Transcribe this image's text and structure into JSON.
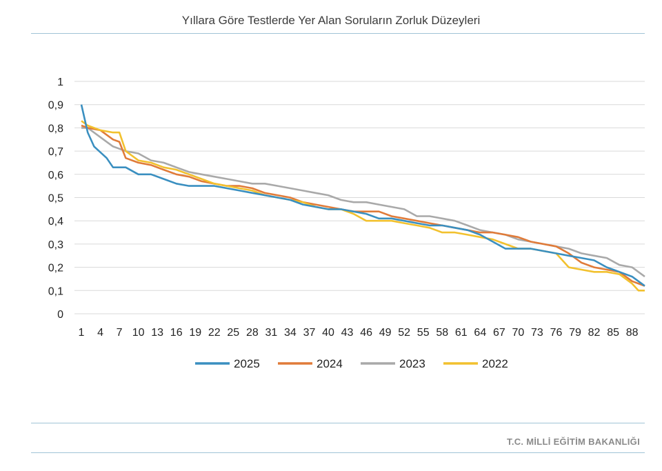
{
  "header": {
    "title": "Yıllara Göre Testlerde Yer Alan Soruların Zorluk Düzeyleri"
  },
  "footer": {
    "org": "T.C. MİLLİ EĞİTİM BAKANLIĞI"
  },
  "chart_data": {
    "type": "line",
    "title": "Yıllara Göre Testlerde Yer Alan Soruların Zorluk Düzeyleri",
    "xlabel": "",
    "ylabel": "",
    "ylim": [
      0,
      1
    ],
    "y_ticks": [
      "0",
      "0,1",
      "0,2",
      "0,3",
      "0,4",
      "0,5",
      "0,6",
      "0,7",
      "0,8",
      "0,9",
      "1"
    ],
    "x_range": [
      1,
      90
    ],
    "x_ticks": [
      1,
      4,
      7,
      10,
      13,
      16,
      19,
      22,
      25,
      28,
      31,
      34,
      37,
      40,
      43,
      46,
      49,
      52,
      55,
      58,
      61,
      64,
      67,
      70,
      73,
      76,
      79,
      82,
      85,
      88
    ],
    "grid": true,
    "legend_position": "bottom",
    "series": [
      {
        "name": "2025",
        "color": "#3a8fc0",
        "points": [
          [
            1,
            0.9
          ],
          [
            2,
            0.78
          ],
          [
            3,
            0.72
          ],
          [
            5,
            0.67
          ],
          [
            6,
            0.63
          ],
          [
            8,
            0.63
          ],
          [
            10,
            0.6
          ],
          [
            12,
            0.6
          ],
          [
            14,
            0.58
          ],
          [
            16,
            0.56
          ],
          [
            18,
            0.55
          ],
          [
            20,
            0.55
          ],
          [
            22,
            0.55
          ],
          [
            24,
            0.54
          ],
          [
            26,
            0.53
          ],
          [
            28,
            0.52
          ],
          [
            30,
            0.51
          ],
          [
            32,
            0.5
          ],
          [
            34,
            0.49
          ],
          [
            36,
            0.47
          ],
          [
            38,
            0.46
          ],
          [
            40,
            0.45
          ],
          [
            42,
            0.45
          ],
          [
            44,
            0.44
          ],
          [
            46,
            0.43
          ],
          [
            48,
            0.41
          ],
          [
            50,
            0.41
          ],
          [
            52,
            0.4
          ],
          [
            54,
            0.39
          ],
          [
            56,
            0.38
          ],
          [
            58,
            0.38
          ],
          [
            60,
            0.37
          ],
          [
            62,
            0.36
          ],
          [
            64,
            0.34
          ],
          [
            66,
            0.31
          ],
          [
            68,
            0.28
          ],
          [
            70,
            0.28
          ],
          [
            72,
            0.28
          ],
          [
            74,
            0.27
          ],
          [
            76,
            0.26
          ],
          [
            78,
            0.25
          ],
          [
            80,
            0.24
          ],
          [
            82,
            0.23
          ],
          [
            84,
            0.2
          ],
          [
            86,
            0.18
          ],
          [
            88,
            0.16
          ],
          [
            89,
            0.14
          ],
          [
            90,
            0.12
          ]
        ]
      },
      {
        "name": "2024",
        "color": "#e07b39",
        "points": [
          [
            1,
            0.81
          ],
          [
            2,
            0.8
          ],
          [
            4,
            0.79
          ],
          [
            6,
            0.75
          ],
          [
            7,
            0.74
          ],
          [
            8,
            0.67
          ],
          [
            10,
            0.65
          ],
          [
            12,
            0.64
          ],
          [
            14,
            0.62
          ],
          [
            16,
            0.6
          ],
          [
            18,
            0.59
          ],
          [
            20,
            0.57
          ],
          [
            22,
            0.56
          ],
          [
            24,
            0.55
          ],
          [
            26,
            0.55
          ],
          [
            28,
            0.54
          ],
          [
            30,
            0.52
          ],
          [
            32,
            0.51
          ],
          [
            34,
            0.5
          ],
          [
            36,
            0.48
          ],
          [
            38,
            0.47
          ],
          [
            40,
            0.46
          ],
          [
            42,
            0.45
          ],
          [
            44,
            0.44
          ],
          [
            46,
            0.44
          ],
          [
            48,
            0.44
          ],
          [
            50,
            0.42
          ],
          [
            52,
            0.41
          ],
          [
            54,
            0.4
          ],
          [
            56,
            0.39
          ],
          [
            58,
            0.38
          ],
          [
            60,
            0.37
          ],
          [
            62,
            0.36
          ],
          [
            64,
            0.35
          ],
          [
            66,
            0.35
          ],
          [
            68,
            0.34
          ],
          [
            70,
            0.33
          ],
          [
            72,
            0.31
          ],
          [
            74,
            0.3
          ],
          [
            76,
            0.29
          ],
          [
            78,
            0.26
          ],
          [
            80,
            0.22
          ],
          [
            82,
            0.2
          ],
          [
            84,
            0.19
          ],
          [
            86,
            0.18
          ],
          [
            88,
            0.14
          ],
          [
            90,
            0.12
          ]
        ]
      },
      {
        "name": "2023",
        "color": "#a9a9a9",
        "points": [
          [
            1,
            0.8
          ],
          [
            2,
            0.8
          ],
          [
            4,
            0.76
          ],
          [
            6,
            0.72
          ],
          [
            7,
            0.71
          ],
          [
            8,
            0.7
          ],
          [
            10,
            0.69
          ],
          [
            12,
            0.66
          ],
          [
            14,
            0.65
          ],
          [
            16,
            0.63
          ],
          [
            18,
            0.61
          ],
          [
            20,
            0.6
          ],
          [
            22,
            0.59
          ],
          [
            24,
            0.58
          ],
          [
            26,
            0.57
          ],
          [
            28,
            0.56
          ],
          [
            30,
            0.56
          ],
          [
            32,
            0.55
          ],
          [
            34,
            0.54
          ],
          [
            36,
            0.53
          ],
          [
            38,
            0.52
          ],
          [
            40,
            0.51
          ],
          [
            42,
            0.49
          ],
          [
            44,
            0.48
          ],
          [
            46,
            0.48
          ],
          [
            48,
            0.47
          ],
          [
            50,
            0.46
          ],
          [
            52,
            0.45
          ],
          [
            54,
            0.42
          ],
          [
            56,
            0.42
          ],
          [
            58,
            0.41
          ],
          [
            60,
            0.4
          ],
          [
            62,
            0.38
          ],
          [
            64,
            0.36
          ],
          [
            66,
            0.35
          ],
          [
            68,
            0.34
          ],
          [
            70,
            0.32
          ],
          [
            72,
            0.31
          ],
          [
            74,
            0.3
          ],
          [
            76,
            0.29
          ],
          [
            78,
            0.28
          ],
          [
            80,
            0.26
          ],
          [
            82,
            0.25
          ],
          [
            84,
            0.24
          ],
          [
            86,
            0.21
          ],
          [
            88,
            0.2
          ],
          [
            90,
            0.16
          ]
        ]
      },
      {
        "name": "2022",
        "color": "#f2c12e",
        "points": [
          [
            1,
            0.83
          ],
          [
            2,
            0.81
          ],
          [
            4,
            0.79
          ],
          [
            6,
            0.78
          ],
          [
            7,
            0.78
          ],
          [
            8,
            0.7
          ],
          [
            10,
            0.66
          ],
          [
            12,
            0.65
          ],
          [
            14,
            0.63
          ],
          [
            16,
            0.62
          ],
          [
            18,
            0.6
          ],
          [
            20,
            0.58
          ],
          [
            22,
            0.56
          ],
          [
            24,
            0.55
          ],
          [
            26,
            0.54
          ],
          [
            28,
            0.53
          ],
          [
            30,
            0.51
          ],
          [
            32,
            0.5
          ],
          [
            34,
            0.49
          ],
          [
            36,
            0.48
          ],
          [
            38,
            0.46
          ],
          [
            40,
            0.45
          ],
          [
            42,
            0.45
          ],
          [
            44,
            0.43
          ],
          [
            46,
            0.4
          ],
          [
            48,
            0.4
          ],
          [
            50,
            0.4
          ],
          [
            52,
            0.39
          ],
          [
            54,
            0.38
          ],
          [
            56,
            0.37
          ],
          [
            58,
            0.35
          ],
          [
            60,
            0.35
          ],
          [
            62,
            0.34
          ],
          [
            64,
            0.33
          ],
          [
            66,
            0.32
          ],
          [
            68,
            0.3
          ],
          [
            70,
            0.28
          ],
          [
            72,
            0.28
          ],
          [
            74,
            0.27
          ],
          [
            76,
            0.26
          ],
          [
            78,
            0.2
          ],
          [
            80,
            0.19
          ],
          [
            82,
            0.18
          ],
          [
            84,
            0.18
          ],
          [
            86,
            0.17
          ],
          [
            88,
            0.13
          ],
          [
            89,
            0.1
          ],
          [
            90,
            0.1
          ]
        ]
      }
    ]
  }
}
